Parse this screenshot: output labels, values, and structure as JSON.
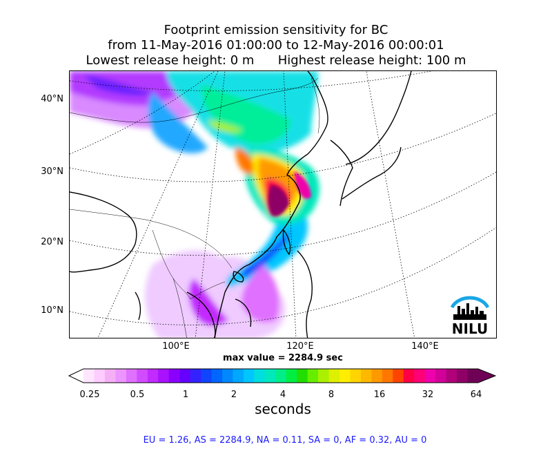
{
  "title": {
    "line1": "Footprint emission sensitivity for BC",
    "line2": "from 11-May-2016 01:00:00 to 12-May-2016 00:00:01",
    "lowest": "Lowest release height: 0 m",
    "highest": "Highest release height: 100 m"
  },
  "lat_labels": [
    "40°N",
    "30°N",
    "20°N",
    "10°N"
  ],
  "lon_labels": [
    "100°E",
    "120°E",
    "140°E"
  ],
  "max_value": "max value = 2284.9 sec",
  "colorbar": {
    "ticks": [
      "0.25",
      "0.5",
      "1",
      "2",
      "4",
      "8",
      "16",
      "32",
      "64"
    ],
    "units": "seconds",
    "colors": [
      "#ffe6ff",
      "#ffccff",
      "#f5b0f5",
      "#ec94ff",
      "#e070ff",
      "#d24cff",
      "#c22bff",
      "#aa11ff",
      "#8a00ff",
      "#6600ff",
      "#3322ff",
      "#1144ff",
      "#0066ff",
      "#0088ff",
      "#00a8ff",
      "#00c6ff",
      "#00dede",
      "#00e8bb",
      "#00ee88",
      "#00ee44",
      "#22dd00",
      "#66ee00",
      "#aaf000",
      "#dcf000",
      "#ffee00",
      "#ffd400",
      "#ffb800",
      "#ff9900",
      "#ff7700",
      "#ff4400",
      "#ff0044",
      "#ff0077",
      "#ee00aa",
      "#d20099",
      "#b0007a",
      "#8f0066",
      "#6e0055"
    ]
  },
  "logo": {
    "text": "NILU",
    "arc_color": "#1aa6e6"
  },
  "footer": "EU = 1.26,  AS = 2284.9,  NA = 0.11,  SA = 0,  AF = 0.32,  AU = 0"
}
